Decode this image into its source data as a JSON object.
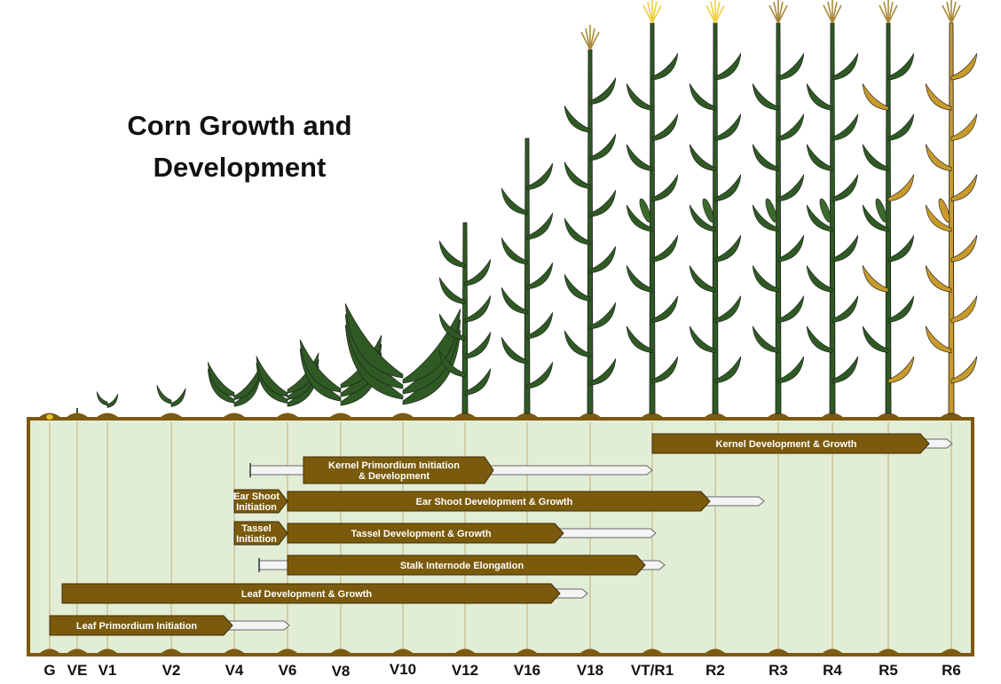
{
  "title": {
    "line1": "Corn Growth and",
    "line2": "Development"
  },
  "stages": [
    "G",
    "VE",
    "V1",
    "V2",
    "V4",
    "V6",
    "V8",
    "V10",
    "V12",
    "V16",
    "V18",
    "VT/R1",
    "R2",
    "R3",
    "R4",
    "R5",
    "R6"
  ],
  "processes": [
    {
      "id": "kernel-dev",
      "label": [
        "Kernel Development & Growth"
      ],
      "start": "VT/R1",
      "end": "R5"
    },
    {
      "id": "kernel-primordium",
      "label": [
        "Kernel Primordium Initiation",
        "& Development"
      ],
      "start": "V6",
      "end": "V16",
      "tail_from": "V4",
      "tail_to": "VT/R1"
    },
    {
      "id": "ear-shoot-initiation",
      "label": [
        "Ear Shoot",
        "Initiation"
      ],
      "start": "V4",
      "end": "V6"
    },
    {
      "id": "ear-shoot-dev",
      "label": [
        "Ear Shoot Development & Growth"
      ],
      "start": "V6",
      "end": "R2",
      "tail_to": "R3"
    },
    {
      "id": "tassel-initiation",
      "label": [
        "Tassel",
        "Initiation"
      ],
      "start": "V4",
      "end": "V6"
    },
    {
      "id": "tassel-dev",
      "label": [
        "Tassel Development & Growth"
      ],
      "start": "V6",
      "end": "V18",
      "tail_to": "VT/R1"
    },
    {
      "id": "stalk-elongation",
      "label": [
        "Stalk Internode Elongation"
      ],
      "start": "V6",
      "end": "VT/R1",
      "tail_from": "V4",
      "tail_to": "VT/R1"
    },
    {
      "id": "leaf-dev",
      "label": [
        "Leaf Development & Growth"
      ],
      "start": "VE",
      "end": "V16",
      "tail_to": "V18"
    },
    {
      "id": "leaf-primordium",
      "label": [
        "Leaf Primordium Initiation"
      ],
      "start": "G",
      "end": "V4",
      "tail_to": "V6"
    }
  ],
  "colors": {
    "panel": "#e2edd6",
    "soil": "#7d5a0f",
    "bar": "#7a5a0c",
    "bar_text": "#ffffff",
    "tail": "#f4f4f4",
    "leaf_green": "#2f5a24",
    "leaf_gold": "#c89a2a"
  }
}
